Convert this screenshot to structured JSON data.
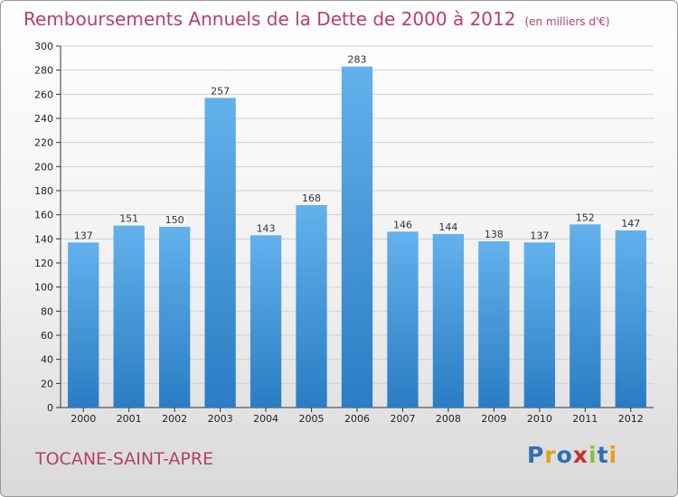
{
  "header": {
    "title": "Remboursements Annuels de la Dette de 2000 à 2012",
    "subtitle": "(en milliers d'€)"
  },
  "footer": {
    "commune": "TOCANE-SAINT-APRE",
    "logo": {
      "text": "Proxiti",
      "letter_colors": [
        "#2e6fb5",
        "#e8a019",
        "#2e6fb5",
        "#c9302c",
        "#8bbf3c",
        "#2e6fb5",
        "#e8a019"
      ]
    }
  },
  "colors": {
    "bar_light": "#63b1ec",
    "bar_dark": "#2a7dc4",
    "grid": "#d2d2d2",
    "axis": "#333333",
    "title": "#b5406e"
  },
  "chart_data": {
    "type": "bar",
    "title": "Remboursements Annuels de la Dette de 2000 à 2012",
    "subtitle": "(en milliers d'€)",
    "categories": [
      "2000",
      "2001",
      "2002",
      "2003",
      "2004",
      "2005",
      "2006",
      "2007",
      "2008",
      "2009",
      "2010",
      "2011",
      "2012"
    ],
    "values": [
      137,
      151,
      150,
      257,
      143,
      168,
      283,
      146,
      144,
      138,
      137,
      152,
      147
    ],
    "ylim": [
      0,
      300
    ],
    "yticks": [
      0,
      20,
      40,
      60,
      80,
      100,
      120,
      140,
      160,
      180,
      200,
      220,
      240,
      260,
      280,
      300
    ],
    "grid": true,
    "legend": "none"
  }
}
